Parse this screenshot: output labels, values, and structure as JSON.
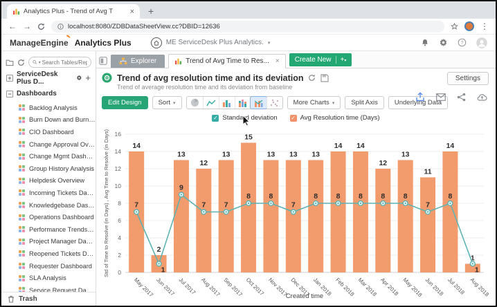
{
  "browser": {
    "tab_title": "Analytics Plus - Trend of Avg T",
    "url": "localhost:8080/ZDBDataSheetView.cc?DBID=12636"
  },
  "header": {
    "brand": "ManageEngine",
    "product": "Analytics Plus",
    "workspace": "ME ServiceDesk Plus Analytics."
  },
  "workspace_tabs": {
    "explorer": "Explorer",
    "report_tab": "Trend of Avg Time to Res...",
    "create_new": "Create New"
  },
  "sidebar": {
    "search_placeholder": "Search Tables/Reports",
    "root_item": "ServiceDesk Plus D...",
    "section_label": "Dashboards",
    "items": [
      "Backlog Analysis",
      "Burn Down and Burn Up Das...",
      "CIO Dashboard",
      "Change Approval Overview",
      "Change Mgmt Dashboard",
      "Group History Analysis",
      "Helpdesk Overview",
      "Incoming Tickets Dashboard",
      "Knowledgebase Dashboard",
      "Operations Dashboard",
      "Performance Trends Dashbo...",
      "Project Manager Dashboard",
      "Reopened Tickets Dashboard",
      "Requester Dashboard",
      "SLA Analysis",
      "Service Request Dashboard"
    ],
    "trash_label": "Trash"
  },
  "report": {
    "title": "Trend of avg resolution time and its deviation",
    "subtitle": "Trend of average resolution time and its deviation from baseline",
    "settings_label": "Settings"
  },
  "toolbar": {
    "edit_design": "Edit Design",
    "sort": "Sort",
    "more_charts": "More Charts",
    "split_axis": "Split Axis",
    "underlying_data": "Underlying Data"
  },
  "legend": [
    {
      "label": "Standard deviation",
      "color": "#35ada4"
    },
    {
      "label": "Avg Resolution time (Days)",
      "color": "#f0916a"
    }
  ],
  "colors": {
    "accent_green": "#27a577",
    "bar": "#f29b6d",
    "line": "#5fb2b2",
    "tab_selected_highlight": "#ddeafc"
  },
  "chart_data": {
    "type": "bar",
    "subtype": "bar-line-combo",
    "title": "Trend of avg resolution time and its deviation",
    "categories": [
      "May 2017",
      "Jun 2017",
      "Jul 2017",
      "Aug 2017",
      "Sep 2017",
      "Oct 2017",
      "Nov 2017",
      "Dec 2017",
      "Jan 2018",
      "Feb 2018",
      "Mar 2018",
      "Apr 2018",
      "May 2018",
      "Jun 2018",
      "Jul 2018",
      "Aug 2018"
    ],
    "series": [
      {
        "name": "Avg Resolution time (Days)",
        "type": "bar",
        "color": "#f29b6d",
        "values": [
          14,
          2,
          13,
          12,
          13,
          15,
          13,
          13,
          13,
          14,
          14,
          12,
          13,
          11,
          14,
          1
        ]
      },
      {
        "name": "Standard deviation",
        "type": "line",
        "color": "#5fb2b2",
        "values": [
          7,
          1,
          9,
          7,
          7,
          8,
          8,
          7,
          8,
          8,
          8,
          8,
          8,
          7,
          8,
          1
        ]
      }
    ],
    "xlabel": "Created time",
    "ylabel": "Std of Time to Resolve (in Days) , Avg Time to Resolve (in Days)",
    "ylim": [
      0,
      16
    ],
    "ytick_step": 2,
    "grid": true,
    "legend_position": "top"
  }
}
